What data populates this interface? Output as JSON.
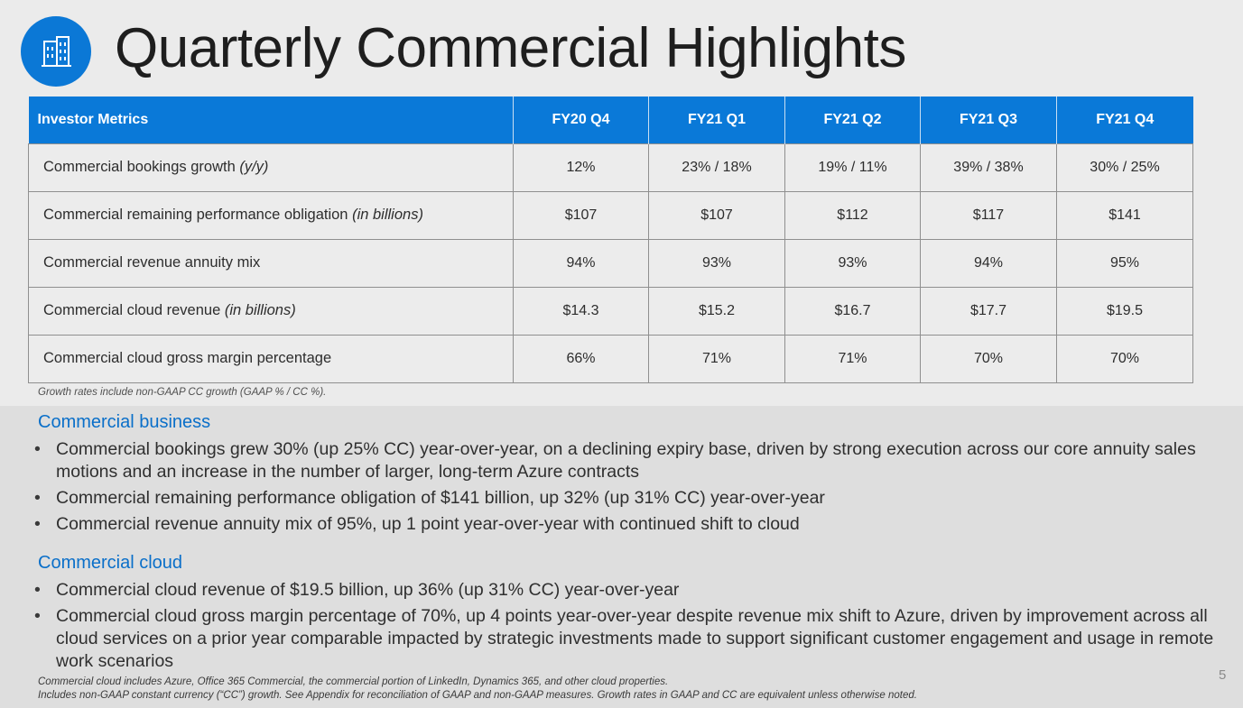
{
  "title": "Quarterly Commercial Highlights",
  "logo": {
    "icon": "building-icon"
  },
  "table": {
    "headers": [
      "Investor Metrics",
      "FY20 Q4",
      "FY21 Q1",
      "FY21 Q2",
      "FY21 Q3",
      "FY21 Q4"
    ],
    "rows": [
      {
        "label": "Commercial bookings growth ",
        "label_note": "(y/y)",
        "values": [
          "12%",
          "23% / 18%",
          "19% / 11%",
          "39% / 38%",
          "30% / 25%"
        ]
      },
      {
        "label": "Commercial remaining performance obligation ",
        "label_note": "(in billions)",
        "values": [
          "$107",
          "$107",
          "$112",
          "$117",
          "$141"
        ]
      },
      {
        "label": "Commercial revenue annuity mix",
        "label_note": "",
        "values": [
          "94%",
          "93%",
          "93%",
          "94%",
          "95%"
        ]
      },
      {
        "label": "Commercial cloud revenue ",
        "label_note": "(in billions)",
        "values": [
          "$14.3",
          "$15.2",
          "$16.7",
          "$17.7",
          "$19.5"
        ]
      },
      {
        "label": "Commercial cloud gross margin percentage",
        "label_note": "",
        "values": [
          "66%",
          "71%",
          "71%",
          "70%",
          "70%"
        ]
      }
    ]
  },
  "growth_note": "Growth rates include non-GAAP CC growth (GAAP % / CC %).",
  "sections": [
    {
      "heading": "Commercial business",
      "bullets": [
        "Commercial bookings grew 30% (up 25% CC) year-over-year, on a declining expiry base, driven by strong execution across our core annuity sales motions and an increase in the number of larger, long-term Azure contracts",
        "Commercial remaining performance obligation of $141 billion, up 32% (up 31% CC) year-over-year",
        "Commercial revenue annuity mix of 95%, up 1 point year-over-year with continued shift to cloud"
      ]
    },
    {
      "heading": "Commercial cloud",
      "bullets": [
        "Commercial cloud revenue of $19.5 billion, up 36% (up 31% CC) year-over-year",
        "Commercial cloud gross margin percentage of 70%, up 4 points year-over-year despite revenue mix shift to Azure, driven by improvement across all cloud services on a prior year comparable impacted by strategic investments made to support significant customer engagement and usage in remote work scenarios"
      ]
    }
  ],
  "footnotes": [
    "Commercial cloud includes Azure, Office 365 Commercial, the commercial portion of LinkedIn, Dynamics 365, and other cloud properties.",
    "Includes non-GAAP constant currency (“CC”) growth. See Appendix for reconciliation of GAAP and non-GAAP measures. Growth rates in GAAP and CC are equivalent unless otherwise noted."
  ],
  "page_number": "5",
  "colors": {
    "accent": "#0a79d8",
    "heading": "#0a6fc9"
  }
}
